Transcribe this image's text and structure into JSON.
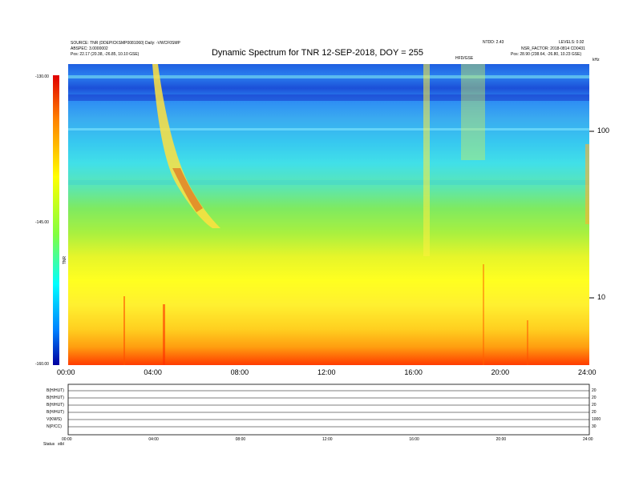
{
  "header": {
    "left_line1": "SOURCE: TNR (DDEPICKSMP0081060) Daily: -VWCF0SMP",
    "left_line2": "ABSPEC: 3.0000002",
    "left_line3": "Pos: 22.17 (20.38, -26.85, 10.10 GSE)",
    "right_line1a": "NTDD: 2.43",
    "right_line1b": "LEVELS: 0.92",
    "right_line2": "NSR_FACTOR: 2018-0814 CD0431",
    "right_line3": "Pos: 28.90 (238.64, -26.80, 10.23 GSE)",
    "center_small": "HFD/GSE",
    "far_right_small": "kHz",
    "title": "Dynamic Spectrum for TNR 12-SEP-2018, DOY = 255"
  },
  "colorbar": {
    "ticks": [
      "-130.00",
      "-145.00",
      "-160.00"
    ],
    "label": "TNR"
  },
  "chart_data": {
    "type": "heatmap",
    "title": "Dynamic Spectrum for TNR 12-SEP-2018, DOY = 255",
    "xlabel": "",
    "ylabel": "",
    "x_ticks": [
      "00:00",
      "04:00",
      "08:00",
      "12:00",
      "16:00",
      "20:00",
      "24:00"
    ],
    "xlim": [
      "00:00",
      "24:00"
    ],
    "y_ticks_right": [
      "100",
      "10"
    ],
    "y_scale": "log",
    "colorbar_range": [
      -160,
      -130
    ],
    "colorbar_ticks": [
      -130,
      -145,
      -160
    ]
  },
  "bottom_panels": {
    "row_labels": [
      "B(H/HUT)",
      "B(H/HUT)",
      "B(H/HUT)",
      "B(H/HUT)",
      "V(KM/S)",
      "N(P/CC)"
    ],
    "left_label": "Status",
    "left_label2": "stbl",
    "x_ticks": [
      "00:00",
      "04:00",
      "08:00",
      "12:00",
      "16:00",
      "20:00",
      "24:00"
    ],
    "right_ticks": [
      "20",
      "20",
      "20",
      "20",
      "1000",
      "30"
    ]
  }
}
